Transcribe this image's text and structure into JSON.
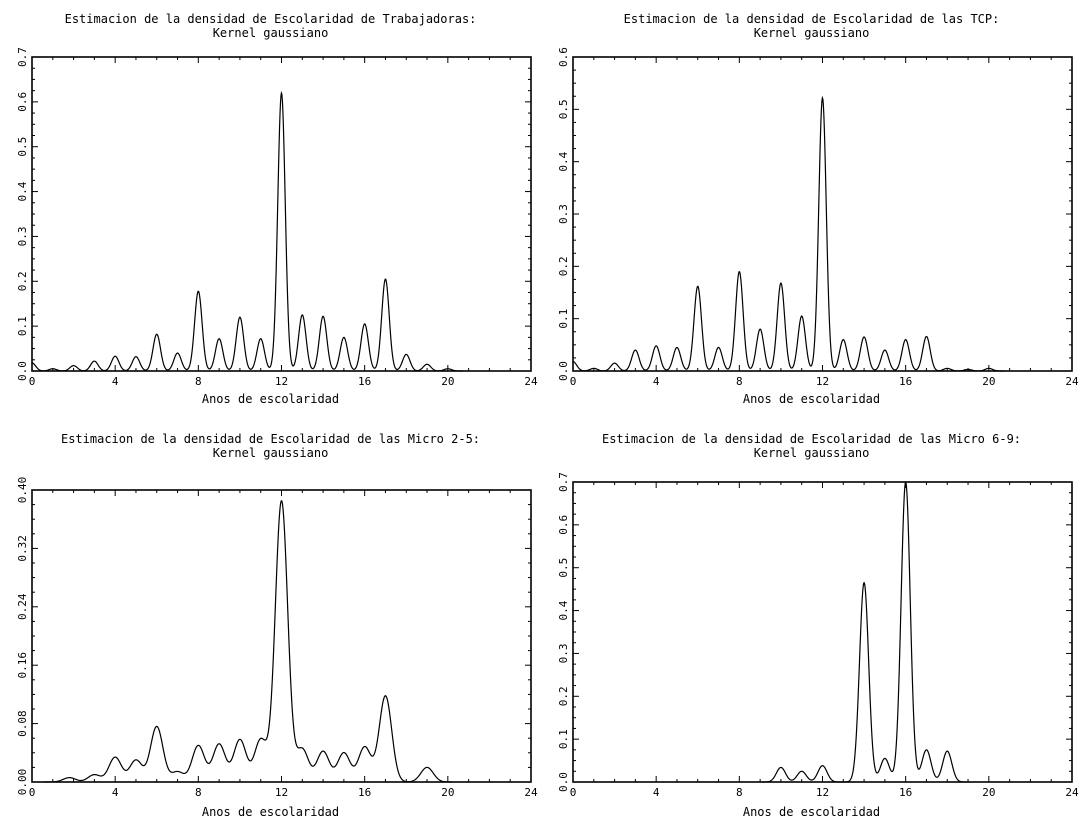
{
  "chart_data": [
    {
      "type": "line",
      "title": "Estimacion de la densidad de Escolaridad de Trabajadoras:",
      "subtitle": "Kernel gaussiano",
      "xlabel": "Anos de escolaridad",
      "ylabel": "",
      "xlim": [
        0,
        24
      ],
      "ylim": [
        0,
        0.7
      ],
      "xticks": [
        0,
        4,
        8,
        12,
        16,
        20,
        24
      ],
      "xtick_labels": [
        "0",
        "4",
        "8",
        "12",
        "16",
        "20",
        "24"
      ],
      "yticks": [
        0,
        0.1,
        0.2,
        0.3,
        0.4,
        0.5,
        0.6,
        0.7
      ],
      "ytick_labels": [
        "0.0",
        "0.1",
        "0.2",
        "0.3",
        "0.4",
        "0.5",
        "0.6",
        "0.7"
      ],
      "grid": false,
      "peaks": [
        [
          0,
          0.018
        ],
        [
          1,
          0.005
        ],
        [
          2,
          0.012
        ],
        [
          3,
          0.022
        ],
        [
          4,
          0.033
        ],
        [
          5,
          0.032
        ],
        [
          6,
          0.082
        ],
        [
          7,
          0.04
        ],
        [
          8,
          0.178
        ],
        [
          9,
          0.072
        ],
        [
          10,
          0.12
        ],
        [
          11,
          0.072
        ],
        [
          12,
          0.62
        ],
        [
          13,
          0.125
        ],
        [
          14,
          0.122
        ],
        [
          15,
          0.075
        ],
        [
          16,
          0.105
        ],
        [
          17,
          0.205
        ],
        [
          18,
          0.037
        ],
        [
          19,
          0.015
        ],
        [
          20,
          0.005
        ]
      ],
      "bandwidth": 0.18,
      "floor": 0
    },
    {
      "type": "line",
      "title": "Estimacion de la densidad de Escolaridad de las TCP:",
      "subtitle": "Kernel gaussiano",
      "xlabel": "Anos de escolaridad",
      "ylabel": "",
      "xlim": [
        0,
        24
      ],
      "ylim": [
        0,
        0.6
      ],
      "xticks": [
        0,
        4,
        8,
        12,
        16,
        20,
        24
      ],
      "xtick_labels": [
        "0",
        "4",
        "8",
        "12",
        "16",
        "20",
        "24"
      ],
      "yticks": [
        0,
        0.1,
        0.2,
        0.3,
        0.4,
        0.5,
        0.6
      ],
      "ytick_labels": [
        "0.0",
        "0.1",
        "0.2",
        "0.3",
        "0.4",
        "0.5",
        "0.6"
      ],
      "grid": false,
      "peaks": [
        [
          0,
          0.018
        ],
        [
          1,
          0.005
        ],
        [
          2,
          0.015
        ],
        [
          3,
          0.04
        ],
        [
          4,
          0.048
        ],
        [
          5,
          0.045
        ],
        [
          6,
          0.162
        ],
        [
          7,
          0.045
        ],
        [
          8,
          0.19
        ],
        [
          9,
          0.08
        ],
        [
          10,
          0.168
        ],
        [
          11,
          0.105
        ],
        [
          12,
          0.522
        ],
        [
          13,
          0.06
        ],
        [
          14,
          0.065
        ],
        [
          15,
          0.04
        ],
        [
          16,
          0.06
        ],
        [
          17,
          0.066
        ],
        [
          18,
          0.005
        ],
        [
          19,
          0.003
        ],
        [
          20,
          0.005
        ]
      ],
      "bandwidth": 0.18,
      "floor": 0
    },
    {
      "type": "line",
      "title": "Estimacion de la densidad de Escolaridad de las Micro 2-5:",
      "subtitle": "Kernel gaussiano",
      "xlabel": "Anos de escolaridad",
      "ylabel": "",
      "xlim": [
        0,
        24
      ],
      "ylim": [
        0,
        0.4
      ],
      "xticks": [
        0,
        4,
        8,
        12,
        16,
        20,
        24
      ],
      "xtick_labels": [
        "0",
        "4",
        "8",
        "12",
        "16",
        "20",
        "24"
      ],
      "yticks": [
        0,
        0.08,
        0.16,
        0.24,
        0.32,
        0.4
      ],
      "ytick_labels": [
        "0.00",
        "0.08",
        "0.16",
        "0.24",
        "0.32",
        "0.40"
      ],
      "grid": false,
      "peaks": [
        [
          1.8,
          0.006
        ],
        [
          3,
          0.01
        ],
        [
          4,
          0.034
        ],
        [
          5,
          0.03
        ],
        [
          6,
          0.076
        ],
        [
          7,
          0.014
        ],
        [
          8,
          0.05
        ],
        [
          9,
          0.052
        ],
        [
          10,
          0.058
        ],
        [
          11,
          0.058
        ],
        [
          12,
          0.385
        ],
        [
          13,
          0.045
        ],
        [
          14,
          0.042
        ],
        [
          15,
          0.04
        ],
        [
          16,
          0.048
        ],
        [
          17,
          0.118
        ],
        [
          19,
          0.02
        ]
      ],
      "bandwidth": 0.3,
      "floor": 0
    },
    {
      "type": "line",
      "title": "Estimacion de la densidad de Escolaridad de las Micro 6-9:",
      "subtitle": "Kernel gaussiano",
      "xlabel": "Anos de escolaridad",
      "ylabel": "",
      "xlim": [
        0,
        24
      ],
      "ylim": [
        0,
        0.7
      ],
      "xticks": [
        0,
        4,
        8,
        12,
        16,
        20,
        24
      ],
      "xtick_labels": [
        "0",
        "4",
        "8",
        "12",
        "16",
        "20",
        "24"
      ],
      "yticks": [
        0,
        0.1,
        0.2,
        0.3,
        0.4,
        0.5,
        0.6,
        0.7
      ],
      "ytick_labels": [
        "0.0",
        "0.1",
        "0.2",
        "0.3",
        "0.4",
        "0.5",
        "0.6",
        "0.7"
      ],
      "grid": false,
      "peaks": [
        [
          10,
          0.034
        ],
        [
          11,
          0.025
        ],
        [
          12,
          0.038
        ],
        [
          14,
          0.465
        ],
        [
          15,
          0.055
        ],
        [
          16,
          0.7
        ],
        [
          17,
          0.075
        ],
        [
          18,
          0.072
        ]
      ],
      "bandwidth": 0.22,
      "floor": 0
    }
  ]
}
